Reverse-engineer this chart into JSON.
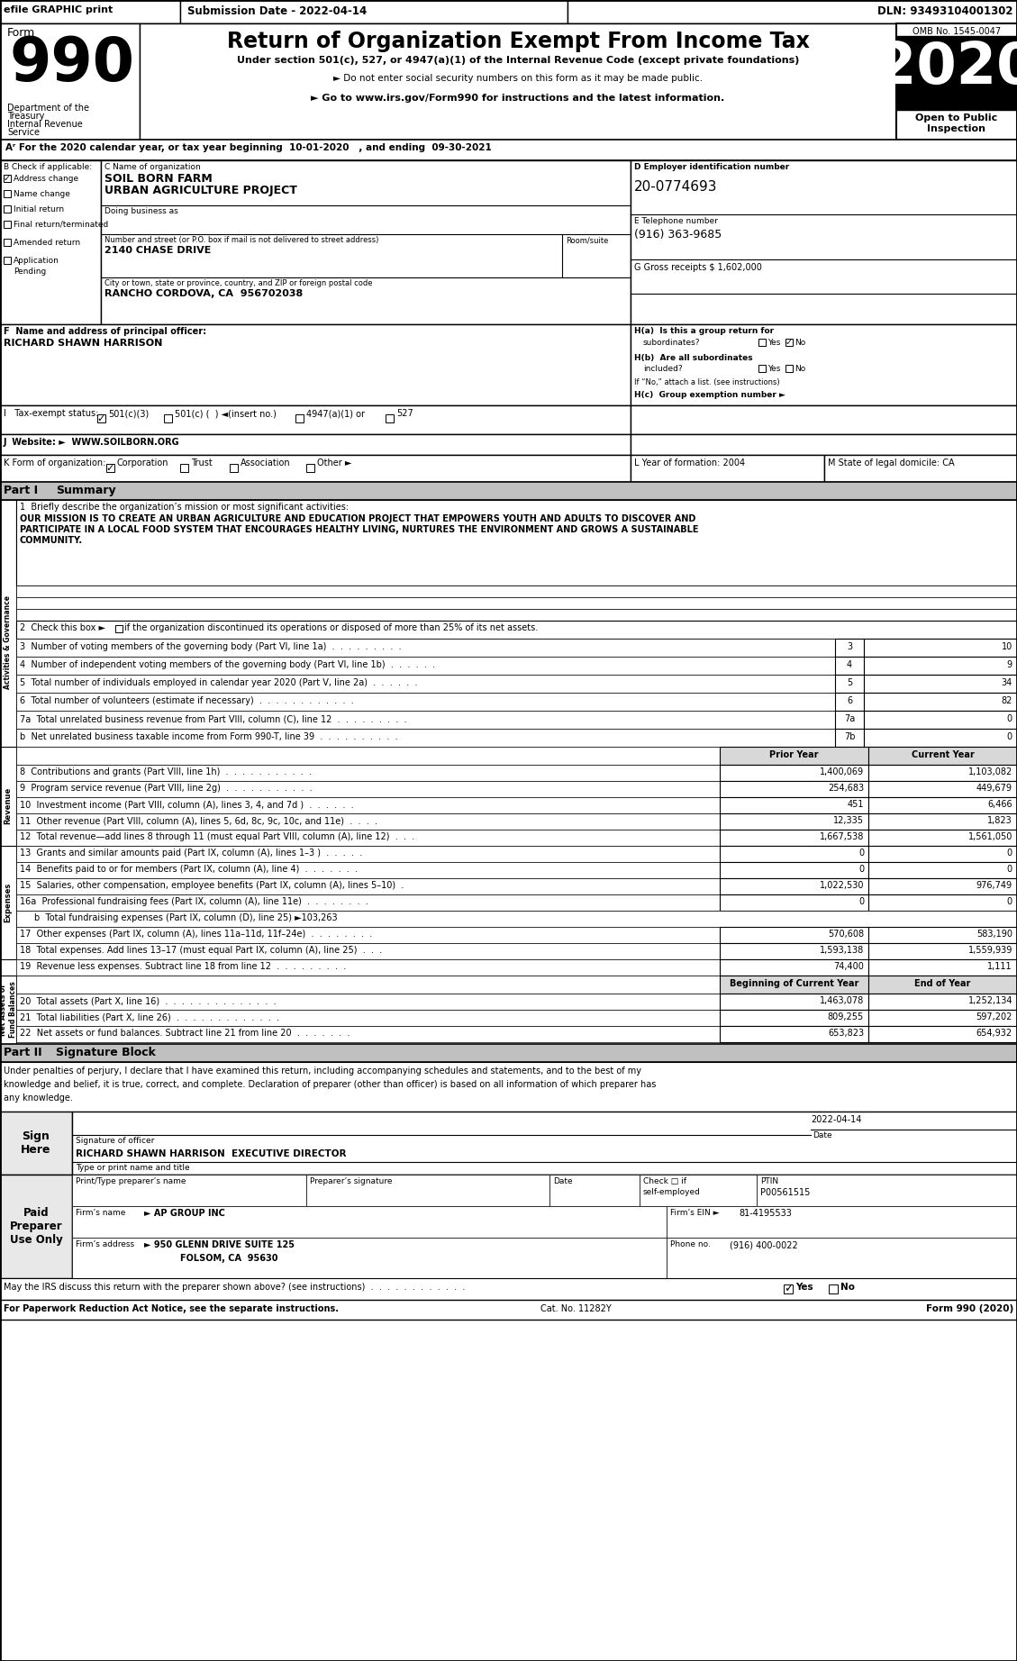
{
  "efile_text": "efile GRAPHIC print",
  "submission_date": "Submission Date - 2022-04-14",
  "dln": "DLN: 93493104001302",
  "title": "Return of Organization Exempt From Income Tax",
  "subtitle1": "Under section 501(c), 527, or 4947(a)(1) of the Internal Revenue Code (except private foundations)",
  "subtitle2": "► Do not enter social security numbers on this form as it may be made public.",
  "subtitle3": "► Go to www.irs.gov/Form990 for instructions and the latest information.",
  "year": "2020",
  "omb": "OMB No. 1545-0047",
  "dept1": "Department of the",
  "dept2": "Treasury",
  "dept3": "Internal Revenue",
  "dept4": "Service",
  "line_a": "Aʳ For the 2020 calendar year, or tax year beginning  10-01-2020   , and ending  09-30-2021",
  "label_b": "B Check if applicable:",
  "label_c": "C Name of organization",
  "org_name1": "SOIL BORN FARM",
  "org_name2": "URBAN AGRICULTURE PROJECT",
  "doing_business_as": "Doing business as",
  "label_street": "Number and street (or P.O. box if mail is not delivered to street address)",
  "label_room": "Room/suite",
  "street": "2140 CHASE DRIVE",
  "label_city": "City or town, state or province, country, and ZIP or foreign postal code",
  "city": "RANCHO CORDOVA, CA  956702038",
  "ein": "20-0774693",
  "phone": "(916) 363-9685",
  "label_g": "G Gross receipts $ 1,602,000",
  "label_f": "F  Name and address of principal officer:",
  "officer": "RICHARD SHAWN HARRISON",
  "mission_text1": "OUR MISSION IS TO CREATE AN URBAN AGRICULTURE AND EDUCATION PROJECT THAT EMPOWERS YOUTH AND ADULTS TO DISCOVER AND",
  "mission_text2": "PARTICIPATE IN A LOCAL FOOD SYSTEM THAT ENCOURAGES HEALTHY LIVING, NURTURES THE ENVIRONMENT AND GROWS A SUSTAINABLE",
  "mission_text3": "COMMUNITY.",
  "preparer_ptin": "P00561515",
  "firm_name": "► AP GROUP INC",
  "firm_ein": "81-4195533",
  "firm_addr": "► 950 GLENN DRIVE SUITE 125",
  "firm_city": "FOLSOM, CA  95630",
  "firm_phone": "(916) 400-0022",
  "sig_date": "2022-04-14",
  "sig_name": "RICHARD SHAWN HARRISON  EXECUTIVE DIRECTOR",
  "cat_label": "Cat. No. 11282Y",
  "form_bottom": "Form 990 (2020)"
}
